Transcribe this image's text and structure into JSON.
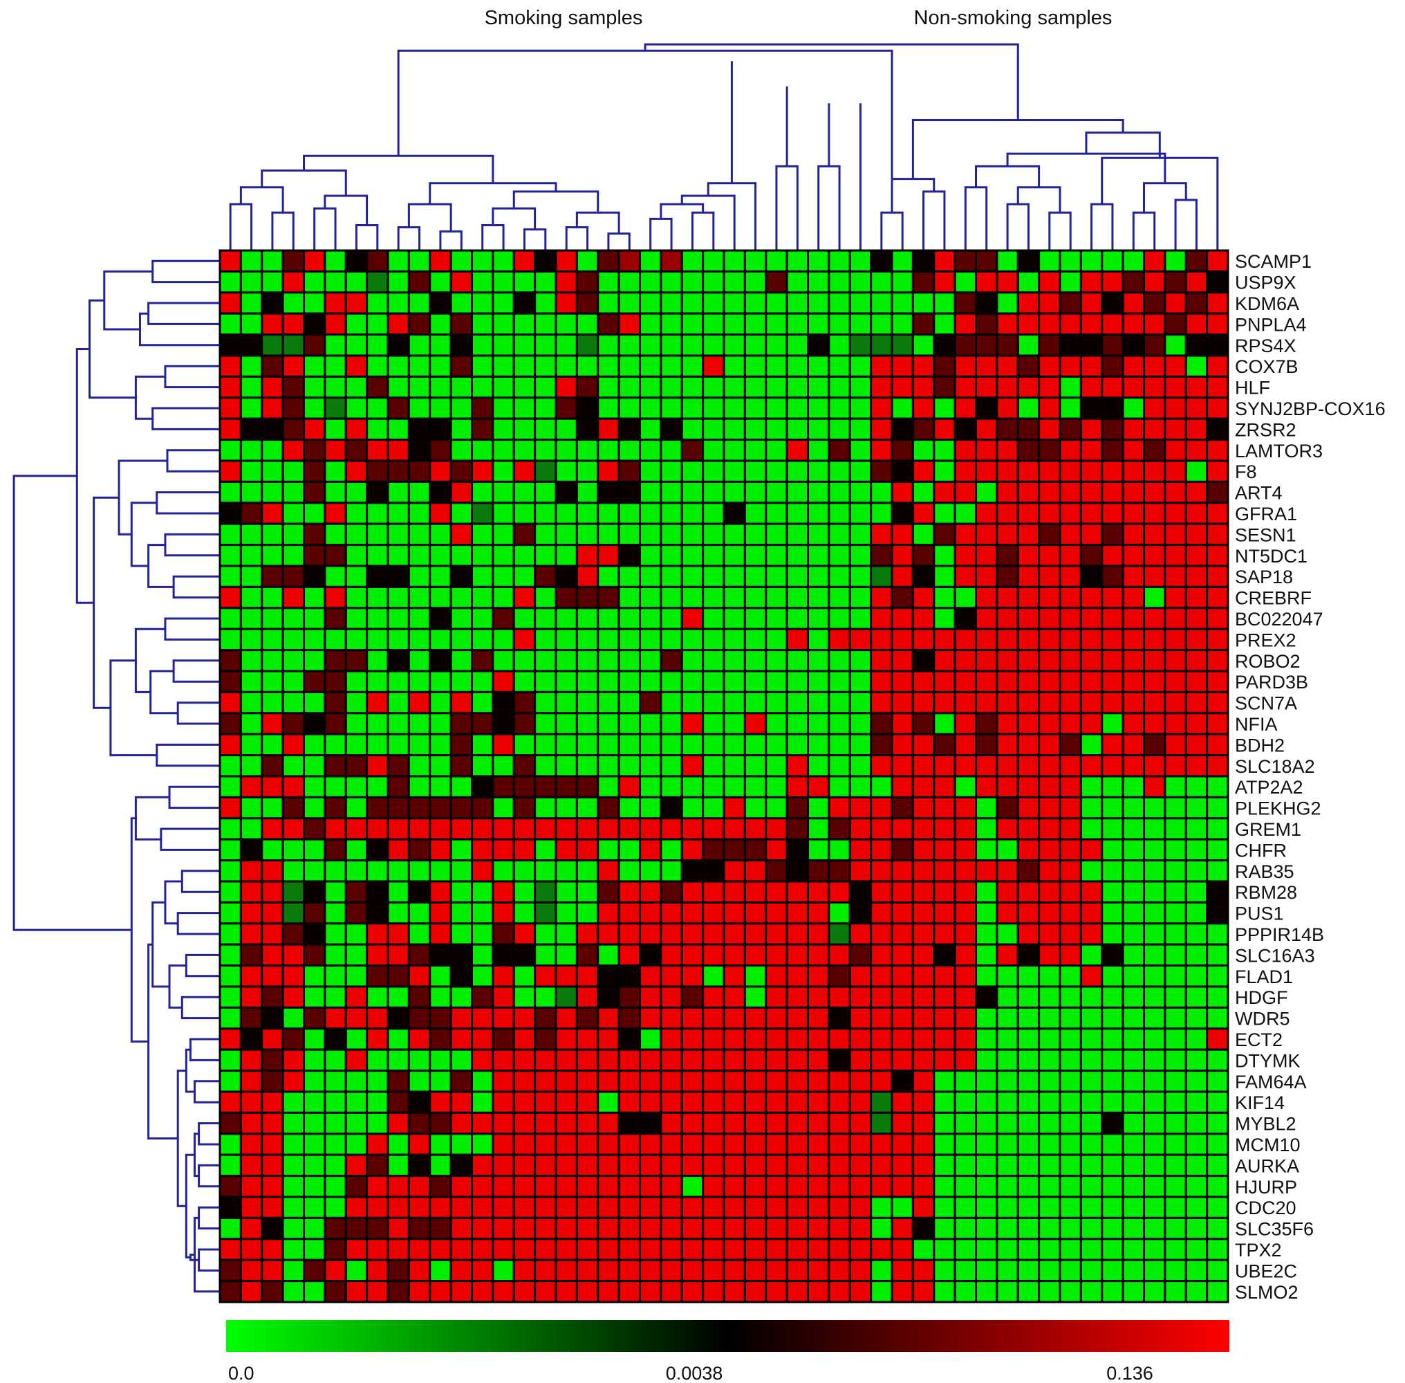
{
  "chart_data": {
    "type": "heatmap",
    "group_labels": [
      "Smoking samples",
      "Non-smoking samples"
    ],
    "rows": [
      "SCAMP1",
      "USP9X",
      "KDM6A",
      "PNPLA4",
      "RPS4X",
      "COX7B",
      "HLF",
      "SYNJ2BP-COX16",
      "ZRSR2",
      "LAMTOR3",
      "F8",
      "ART4",
      "GFRA1",
      "SESN1",
      "NT5DC1",
      "SAP18",
      "CREBRF",
      "BC022047",
      "PREX2",
      "ROBO2",
      "PARD3B",
      "SCN7A",
      "NFIA",
      "BDH2",
      "SLC18A2",
      "ATP2A2",
      "PLEKHG2",
      "GREM1",
      "CHFR",
      "RAB35",
      "RBM28",
      "PUS1",
      "PPPIR14B",
      "SLC16A3",
      "FLAD1",
      "HDGF",
      "WDR5",
      "ECT2",
      "DTYMK",
      "FAM64A",
      "KIF14",
      "MYBL2",
      "MCM10",
      "AURKA",
      "HJURP",
      "CDC20",
      "SLC35F6",
      "TPX2",
      "UBE2C",
      "SLMO2"
    ],
    "n_columns": 48,
    "n_smoking_columns": 31,
    "colorbar": {
      "tick_labels": [
        "0.0",
        "0.0038",
        "0.136"
      ],
      "colors": [
        "#00ff00",
        "#000000",
        "#ff0000"
      ]
    },
    "cell_colors": {
      "G": "#00ee00",
      "g": "#0a7a0a",
      "k": "#0a0000",
      "d": "#5a0000",
      "m": "#9a0000",
      "R": "#ee0000"
    },
    "matrix": [
      "RGGdRGkdGGRGGGRkRGdmGmGGGGGGGGGkGkRddGkGGGGGRGdR",
      "GGGRGGGgGdGRGGGGRdGGGGGGGGdGGGGGGdRGRRGRGRRdRdRk",
      "RGkGGRRGGGkGGGkGRdGGGGGGGGGGGGGGGGGdkGRRdRkRdRdR",
      "GGRRkRGGRdGdGGGGGGdRGGGGGGGGGGGGGdGRdRRRRRRRRdRR",
      "kkggdGGGkGGkGGGGGgGGGGGGGGGGkGgggGkdddGdkkdkdGkk",
      "RGdRGGRGGGGdGGGGGGGGGGGRGGGGGGGRRRdRRRdRRRdRRRGR",
      "RGRdGGGdGGGGGGGGRdGGGGGGGGGGGGGRRRdRRRRRGRRRRRRR",
      "RGRdGgGGdGGGdGGGdkGGGGGGGGGGGGGRGRGRkRGRGkkGRRRR",
      "RkkdRGRGGkkGdGGGGkRkGkGGGGGGGGGRkdRkRddRdRdRRRRk",
      "GGGRdRdRRkdGGGGGGGGGGGdGGGGRGdGRdGGRRRddRRdRdRRR",
      "RGGGdGRdddRdRGRgGGRdGGGGGGGGGGGdkRGRRRRRRRRRRRGR",
      "GGGGdGGkGGkRGGGGkGkkGGGGGGGGGGGGRGRRGRRRRRRRRRRd",
      "kdRGGRGGGGRGgGGGGGGGGGGGkGGGGGGGkRGGRRRRRRRRRRRR",
      "GGGGdGGGGGGRGGdGGGGGGGGGGGGGGGGRRGdRRRRdRRdRRRRR",
      "GGGGddGGGGGGGGGGGRRkGGGGGGGGGGGdRdGRRdRRRdRRRRRR",
      "GGddkGGkkGGkGGGdkRGGGGGGGGGGGGGgRkGRRdRRRkdRRRRR",
      "RGGRGRGGGGGGGGRGdddGGGGGGGGGGGGRdRGGRRRRRRRRGRRR",
      "GGGGGdGGGGkGGdGGGGGGGGRGGGGGGGGRRRGkRRRRRRRRRRRR",
      "GGGGGGGGGGGGGGRGGGGGGGGGGGGRGRRRRRRRRRRRRRRRRRRR",
      "dGGGGddGkGkGdGGGGGGGGdGGGGGGGGGRRkRRRRRRRRRRRRRR",
      "dGGGddGGGGGGGRGGGGGGGGGGGGGGGGGRRRRRRRRRRRRRRRRR",
      "RGGGGdGRGRGRGkdGGGGGdGGGGGGGGGGRRRRRRRRRRRRRRRRR",
      "dGRdkdGGGGGddkdGGGGGGGRGGRGGGGGdRdGRdRRRRRGRRRRR",
      "RGGRGGGGGGGdGRGGGGGGGGGGGGGGGGGdRRdRdRRRdGRRdRRR",
      "GGdGGddRdGGdGGdGGGGGGGRGGGGRGGGRRRRRRRRRRRRRRRRR",
      "GRRRGGGGdGGGkdddddGRGGGGGGGRRGGGRRRGRRRRRGGGRGGG",
      "RGGdGdGddddddGdGGGdGGkGGRGGdGRRRdRRRGdRRRGGGGGGG",
      "GGRRdRRRRRRRRRRRRRRRRRRRRRRdGdRRRRRRGRRRRGGGGGGG",
      "GkGGGdGkRdRGRRRGRRGGRGRdddRkGGRRdRRRGGRRRRGGGGGG",
      "GRRGGGGGGGGGRGGGGGRGGGkkRRdkddRRRRRRRRdRRGGGGGGG",
      "GRRgkGdkGkRGGRGgGGdRRdRRRRRRRRkRRRRRGRRRRRGGGGGk",
      "GRRgdGdkGGRGGRGgGGRRRRRRRRRRRGkRRRRRGRRRRRGGGGGk",
      "GRRdkGGRRGRGGdRGGRRRRRRRRRRRRgRRRRRRGGRRRRGGGGGG",
      "GdRRdGGRRdkkGkkGGdGRkRRRRRRRRRdRRRkRGRkRRGkGGGGG",
      "GRRRGGGddRGkGRGRRRkkRRRGRGRRRdRRRRRRGGGGGRGGGGGG",
      "GRdRGGRGGdGGdRGGgRkdRRdRRGRRRRRRRRRRkGGGGGGGGGGG",
      "GdkGdRRRkddRRRRdRdRdRRRRRRRRRkRRRRRRGGGGGGGGGGGG",
      "RkRdGkGRGRdRRdRdRRRkGRRRRRRRRRRRRRRRGGGGGGGGGGGR",
      "GRdRGGRGGGGGRRRRRRRRRRRRRRRRRkRRRRRRGGGGGGGGGGGG",
      "GRdRGGGGdGGdGRRRRRRRRRRRRRRRRRRRkRGGGGGGGGGGGGGG",
      "RRRGGGGGdkRRGRRRRRGRRRRRRRRRRRRgRRGGGGGGGGGGGGGG",
      "dRRGGGGGRddRRRRRRRRkkRRRRRRRRRRgRRGGGGGGGGkGGGGG",
      "GRRGGGGRGRGGGRRRRRRRRRRRRRRRRRRRRRGGGGGGGGGGGGGG",
      "GRRGGGRdGkGkRRRRRRRRRRRRRRRRRRRRRRGGGGGGGGGGGGGG",
      "dRRGGGdRRRdRRRRRRRRRRRGRRRRRRRRRRRGGGGGGGGGGGGGG",
      "kRRGGGRRRRRRRRRRRRRRRRRRRRRRRRRGGRGGGGGGGGGGGGGG",
      "GRkGGdddRddRRRRRRRRRRRRRRRRRRRRGRkGGGGGGGGGGGGGG",
      "RRRGGdRRRRRRRRRRRRRRRRRRRRRRRRRRRGGGGGGGGGGGGGGG",
      "dRRGdRGRdRGRRGRRRRRRRRRRRRRRRRRGRRGGGGGGGGGGGGGG",
      "dRdGGdRRdRRRRRRRRRRRRRRRRRRRRRRGRRGGGGGGGGGGGGGG"
    ],
    "column_dendrogram": [
      [
        0,
        1,
        0.22
      ],
      [
        2,
        3,
        0.18
      ],
      [
        4,
        5,
        0.2
      ],
      [
        6,
        7,
        0.12
      ],
      [
        8,
        9,
        0.11
      ],
      [
        10,
        11,
        0.09
      ],
      [
        12,
        13,
        0.12
      ],
      [
        14,
        15,
        0.1
      ],
      [
        16,
        17,
        0.11
      ],
      [
        18,
        19,
        0.08
      ],
      [
        -1,
        -2,
        0.3
      ],
      [
        -3,
        -4,
        0.26
      ],
      [
        -5,
        -6,
        0.22
      ],
      [
        -7,
        -8,
        0.2
      ],
      [
        -9,
        -10,
        0.18
      ],
      [
        -14,
        -15,
        0.28
      ],
      [
        -11,
        -12,
        0.38
      ],
      [
        -13,
        -16,
        0.32
      ],
      [
        -17,
        -18,
        0.45
      ],
      [
        20,
        21,
        0.15
      ],
      [
        22,
        23,
        0.18
      ],
      [
        -20,
        -21,
        0.22
      ],
      [
        24,
        -22,
        0.26
      ],
      [
        25,
        -23,
        0.32
      ],
      [
        26,
        27,
        0.4
      ],
      [
        28,
        29,
        0.4
      ],
      [
        -26,
        -27,
        0.7
      ],
      [
        30,
        -28,
        0.7
      ],
      [
        -25,
        -29,
        0.78
      ],
      [
        -24,
        -30,
        0.9
      ],
      [
        31,
        32,
        0.18
      ],
      [
        33,
        34,
        0.28
      ],
      [
        -31,
        -32,
        0.34
      ],
      [
        35,
        36,
        0.3
      ],
      [
        37,
        38,
        0.22
      ],
      [
        39,
        40,
        0.18
      ],
      [
        41,
        42,
        0.22
      ],
      [
        43,
        44,
        0.18
      ],
      [
        45,
        46,
        0.24
      ],
      [
        -35,
        -36,
        0.3
      ],
      [
        -34,
        -40,
        0.4
      ],
      [
        -38,
        -39,
        0.32
      ],
      [
        47,
        -37,
        0.44
      ],
      [
        -41,
        -42,
        0.46
      ],
      [
        -43,
        -44,
        0.56
      ],
      [
        -33,
        -45,
        0.62
      ],
      [
        -19,
        -31,
        0.95
      ],
      [
        -46,
        -47,
        0.98
      ]
    ],
    "row_dendrogram": [
      [
        0,
        1,
        0.32
      ],
      [
        2,
        3,
        0.34
      ],
      [
        -2,
        4,
        0.38
      ],
      [
        -1,
        -3,
        0.55
      ],
      [
        5,
        6,
        0.26
      ],
      [
        7,
        8,
        0.32
      ],
      [
        -5,
        -6,
        0.4
      ],
      [
        -4,
        -7,
        0.62
      ],
      [
        9,
        10,
        0.25
      ],
      [
        11,
        12,
        0.3
      ],
      [
        13,
        14,
        0.26
      ],
      [
        15,
        16,
        0.22
      ],
      [
        -11,
        -12,
        0.34
      ],
      [
        -10,
        -13,
        0.42
      ],
      [
        -9,
        -14,
        0.48
      ],
      [
        17,
        18,
        0.26
      ],
      [
        19,
        20,
        0.22
      ],
      [
        21,
        22,
        0.2
      ],
      [
        -17,
        -18,
        0.33
      ],
      [
        -16,
        -19,
        0.4
      ],
      [
        23,
        24,
        0.3
      ],
      [
        -20,
        -21,
        0.52
      ],
      [
        -15,
        -22,
        0.6
      ],
      [
        -8,
        -23,
        0.68
      ],
      [
        25,
        26,
        0.24
      ],
      [
        27,
        28,
        0.28
      ],
      [
        -25,
        -26,
        0.4
      ],
      [
        29,
        30,
        0.18
      ],
      [
        31,
        32,
        0.2
      ],
      [
        -28,
        -29,
        0.26
      ],
      [
        33,
        34,
        0.16
      ],
      [
        35,
        36,
        0.18
      ],
      [
        -31,
        -32,
        0.24
      ],
      [
        -30,
        -33,
        0.32
      ],
      [
        37,
        38,
        0.14
      ],
      [
        39,
        40,
        0.12
      ],
      [
        -35,
        -36,
        0.16
      ],
      [
        41,
        42,
        0.1
      ],
      [
        43,
        44,
        0.1
      ],
      [
        -38,
        -39,
        0.12
      ],
      [
        45,
        46,
        0.1
      ],
      [
        47,
        48,
        0.1
      ],
      [
        -41,
        49,
        0.12
      ],
      [
        -42,
        -43,
        0.14
      ],
      [
        -40,
        -44,
        0.16
      ],
      [
        -37,
        -45,
        0.2
      ],
      [
        -34,
        -46,
        0.34
      ],
      [
        -27,
        -47,
        0.42
      ],
      [
        -24,
        -48,
        0.98
      ]
    ]
  }
}
